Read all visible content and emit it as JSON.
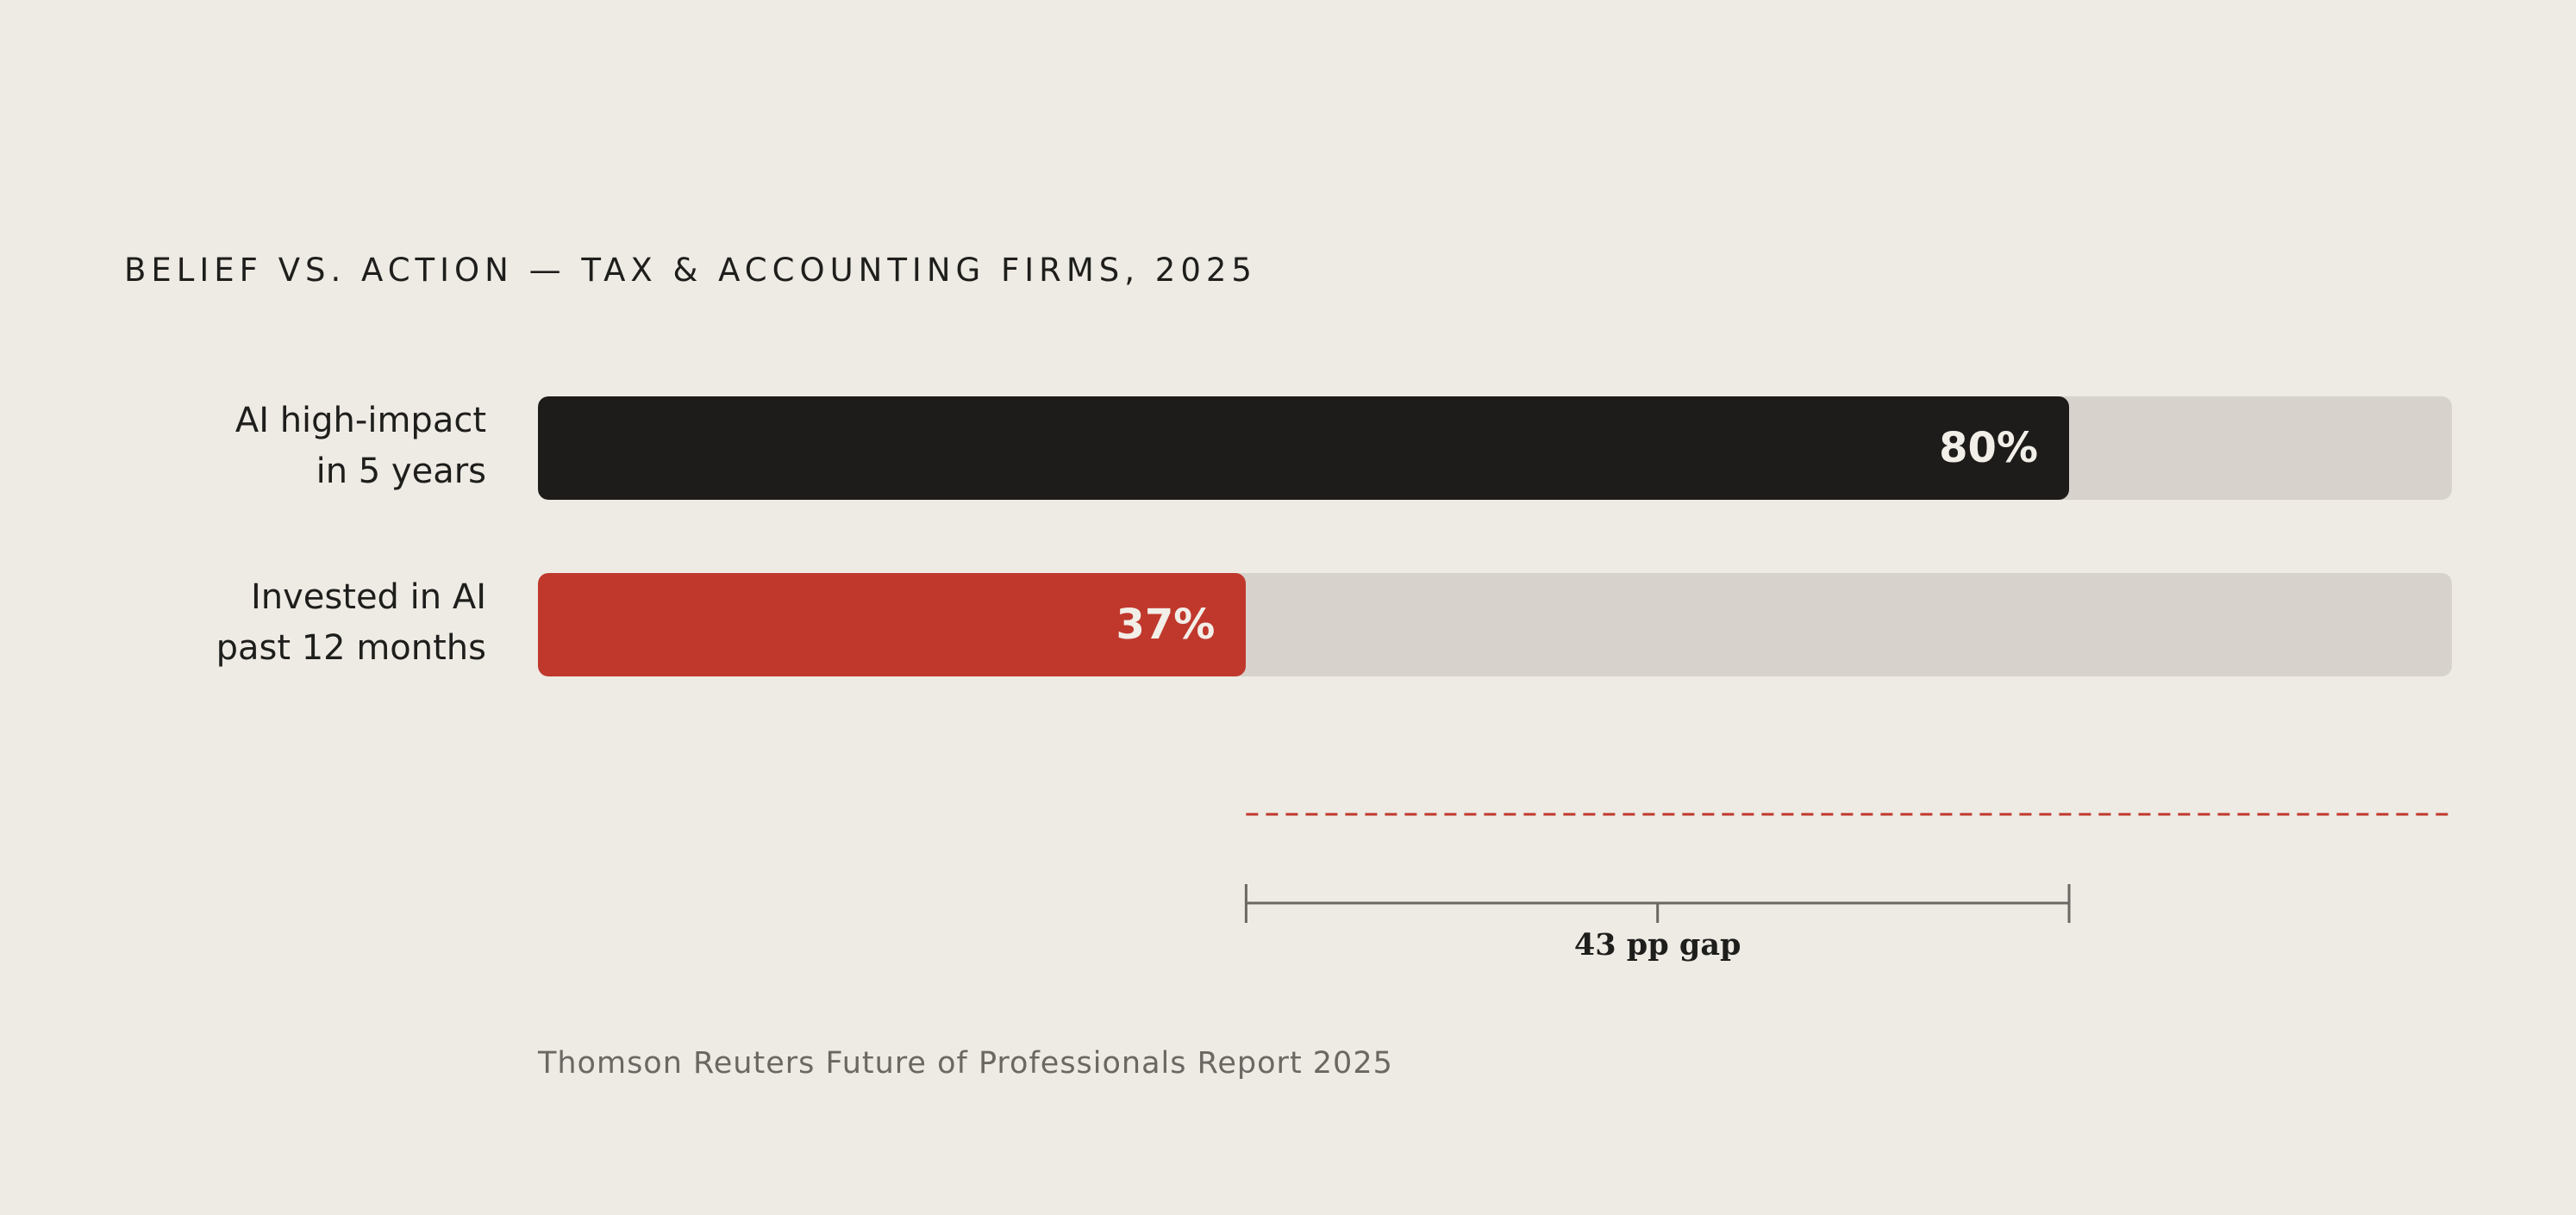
{
  "chart_data": {
    "type": "bar",
    "orientation": "horizontal",
    "title": "BELIEF VS. ACTION — TAX & ACCOUNTING FIRMS, 2025",
    "xlim": [
      0,
      100
    ],
    "unit": "%",
    "bars": [
      {
        "category": [
          "AI high-impact",
          "in 5 years"
        ],
        "value": 80,
        "label": "80%",
        "color": "#1D1C1A"
      },
      {
        "category": [
          "Invested in AI",
          "past 12 months"
        ],
        "value": 37,
        "label": "37%",
        "color": "#C0382C"
      }
    ],
    "annotation": {
      "from": 37,
      "to": 80,
      "text": "43 pp gap"
    },
    "reference_line": {
      "from": 37,
      "to": 100,
      "style": "dashed",
      "color": "#C0382C"
    },
    "source": "Thomson Reuters Future of Professionals Report 2025"
  }
}
